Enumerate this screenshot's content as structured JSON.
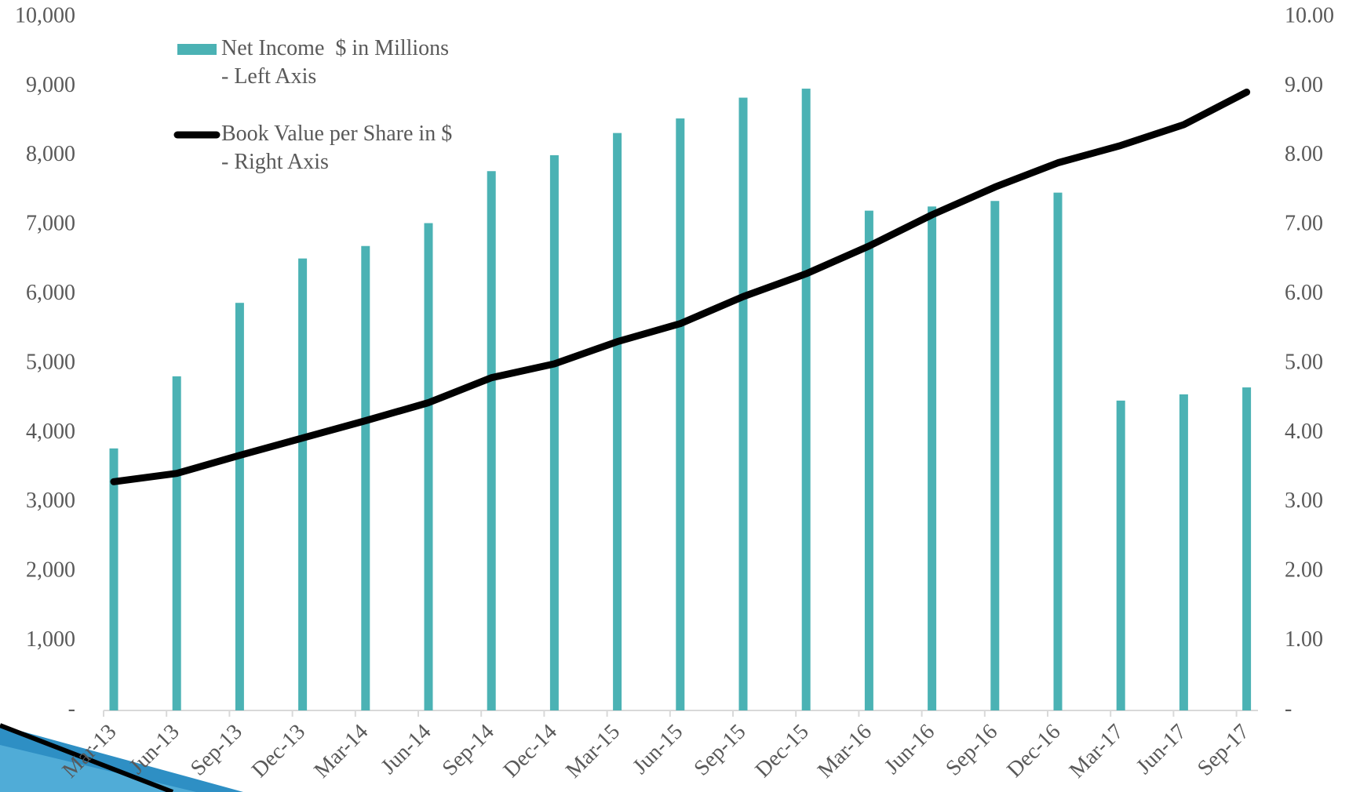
{
  "chart_data": {
    "type": "bar-line",
    "categories": [
      "Mar-13",
      "Jun-13",
      "Sep-13",
      "Dec-13",
      "Mar-14",
      "Jun-14",
      "Sep-14",
      "Dec-14",
      "Mar-15",
      "Jun-15",
      "Sep-15",
      "Dec-15",
      "Mar-16",
      "Jun-16",
      "Sep-16",
      "Dec-16",
      "Mar-17",
      "Jun-17",
      "Sep-17"
    ],
    "series": [
      {
        "name": "Net Income  $ in Millions\n- Left Axis",
        "type": "bar",
        "color": "#4bb2b4",
        "values": [
          3780,
          4820,
          5880,
          6520,
          6700,
          7030,
          7780,
          8010,
          8330,
          8540,
          8840,
          8970,
          7210,
          7270,
          7350,
          7470,
          4470,
          4560,
          4660
        ]
      },
      {
        "name": "Book Value per Share in $\n- Right Axis",
        "type": "line",
        "axis": "y2",
        "color": "#000000",
        "values": [
          3.3,
          3.42,
          3.68,
          3.93,
          4.18,
          4.44,
          4.8,
          5.0,
          5.32,
          5.58,
          5.97,
          6.3,
          6.7,
          7.15,
          7.55,
          7.9,
          8.15,
          8.45,
          8.92
        ]
      }
    ],
    "ylim": [
      0,
      10000
    ],
    "yticks": [
      {
        "value": 0,
        "label": "-"
      },
      {
        "value": 1000,
        "label": "1,000"
      },
      {
        "value": 2000,
        "label": "2,000"
      },
      {
        "value": 3000,
        "label": "3,000"
      },
      {
        "value": 4000,
        "label": "4,000"
      },
      {
        "value": 5000,
        "label": "5,000"
      },
      {
        "value": 6000,
        "label": "6,000"
      },
      {
        "value": 7000,
        "label": "7,000"
      },
      {
        "value": 8000,
        "label": "8,000"
      },
      {
        "value": 9000,
        "label": "9,000"
      },
      {
        "value": 10000,
        "label": "10,000"
      }
    ],
    "y2lim": [
      0,
      10
    ],
    "y2ticks": [
      {
        "value": 0,
        "label": "-"
      },
      {
        "value": 1,
        "label": "1.00"
      },
      {
        "value": 2,
        "label": "2.00"
      },
      {
        "value": 3,
        "label": "3.00"
      },
      {
        "value": 4,
        "label": "4.00"
      },
      {
        "value": 5,
        "label": "5.00"
      },
      {
        "value": 6,
        "label": "6.00"
      },
      {
        "value": 7,
        "label": "7.00"
      },
      {
        "value": 8,
        "label": "8.00"
      },
      {
        "value": 9,
        "label": "9.00"
      },
      {
        "value": 10,
        "label": "10.00"
      }
    ],
    "grid": false,
    "legend": "top-left"
  }
}
